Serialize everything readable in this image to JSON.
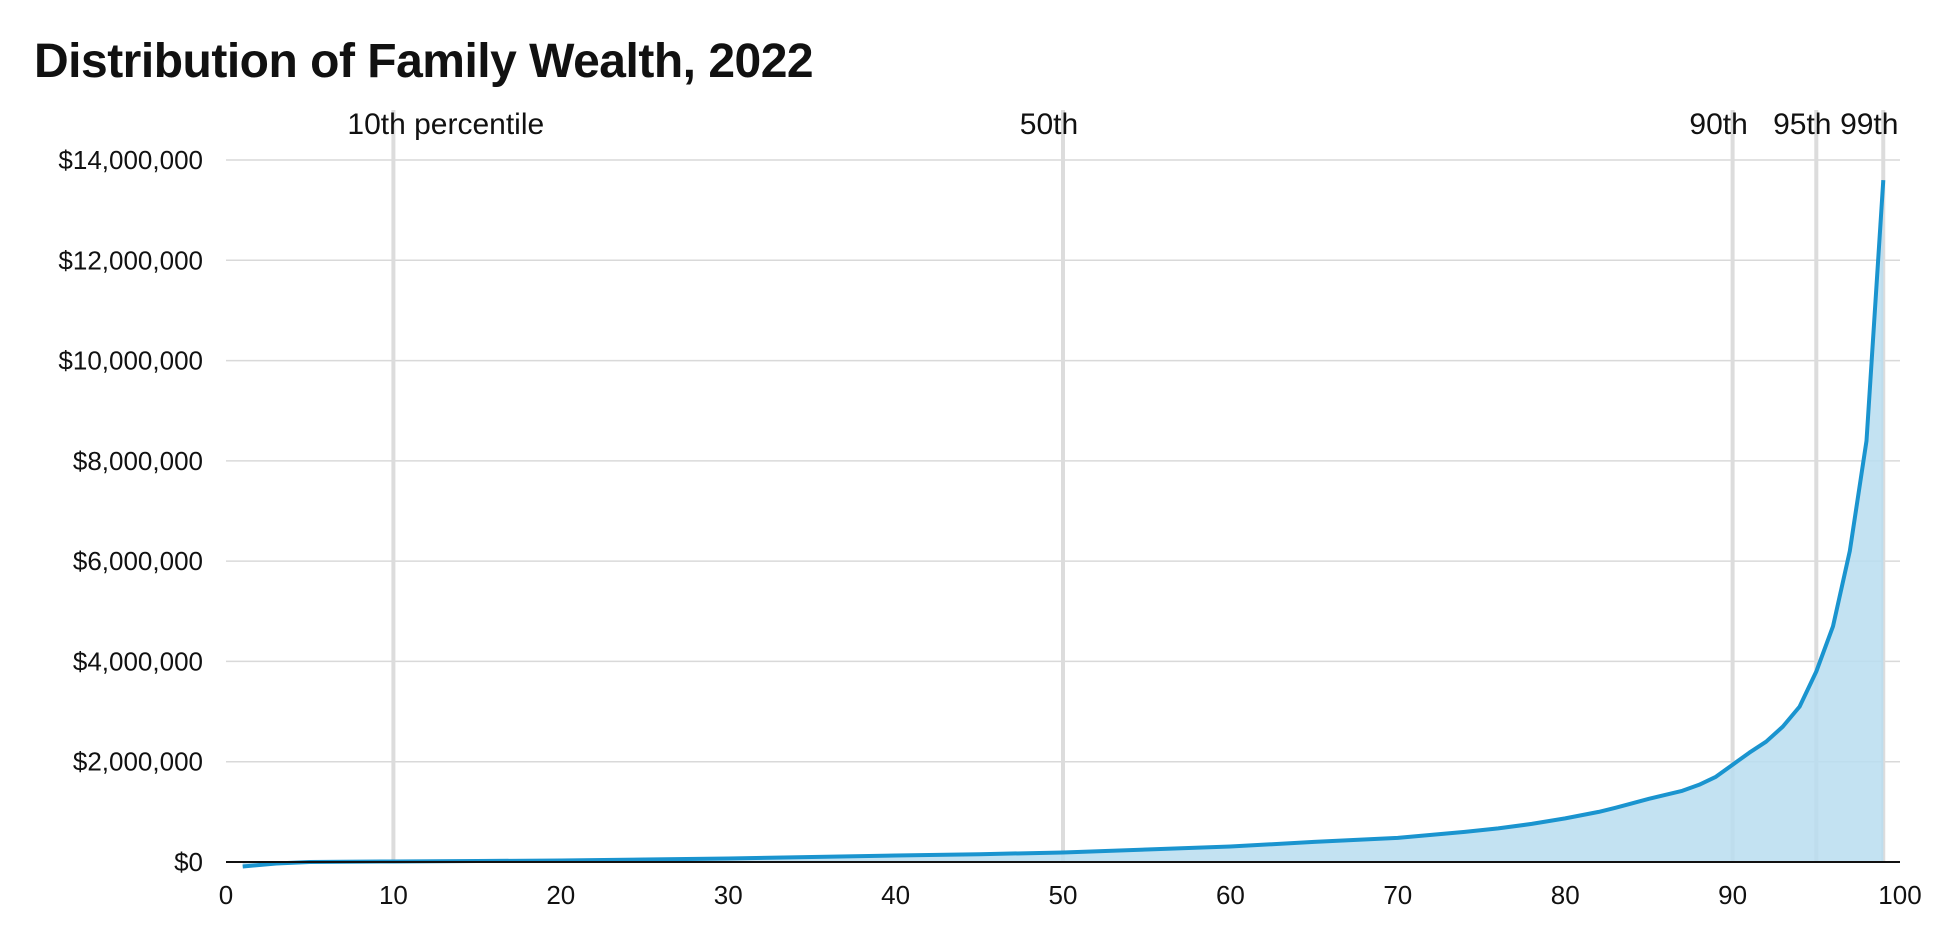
{
  "chart_data": {
    "type": "area",
    "title": "Distribution of Family Wealth, 2022",
    "xlabel": "",
    "ylabel": "",
    "xlim": [
      0,
      100
    ],
    "ylim": [
      0,
      14000000
    ],
    "grid": true,
    "x_ticks": [
      0,
      10,
      20,
      30,
      40,
      50,
      60,
      70,
      80,
      90,
      100
    ],
    "x_tick_labels": [
      "0",
      "10",
      "20",
      "30",
      "40",
      "50",
      "60",
      "70",
      "80",
      "90",
      "100"
    ],
    "y_ticks": [
      0,
      2000000,
      4000000,
      6000000,
      8000000,
      10000000,
      12000000,
      14000000
    ],
    "y_tick_labels": [
      "$0",
      "$2,000,000",
      "$4,000,000",
      "$6,000,000",
      "$8,000,000",
      "$10,000,000",
      "$12,000,000",
      "$14,000,000"
    ],
    "reference_lines": [
      {
        "x": 10,
        "label": "10th percentile"
      },
      {
        "x": 50,
        "label": "50th"
      },
      {
        "x": 90,
        "label": "90th"
      },
      {
        "x": 95,
        "label": "95th"
      },
      {
        "x": 99,
        "label": "99th"
      }
    ],
    "colors": {
      "line": "#1a94cf",
      "fill": "#b9ddf0",
      "grid": "#d9d9d9",
      "refline": "#dcdcdc"
    },
    "x": [
      1,
      3,
      5,
      7,
      10,
      15,
      20,
      25,
      30,
      35,
      40,
      45,
      50,
      55,
      60,
      65,
      70,
      72,
      74,
      76,
      78,
      80,
      82,
      83,
      84,
      85,
      86,
      87,
      88,
      89,
      90,
      91,
      92,
      93,
      94,
      95,
      96,
      97,
      98,
      99
    ],
    "values": [
      -90000,
      -30000,
      0,
      5000,
      10000,
      20000,
      30000,
      50000,
      70000,
      100000,
      130000,
      155000,
      190000,
      250000,
      310000,
      400000,
      480000,
      540000,
      600000,
      670000,
      760000,
      870000,
      1000000,
      1080000,
      1170000,
      1260000,
      1340000,
      1420000,
      1540000,
      1700000,
      1940000,
      2180000,
      2400000,
      2700000,
      3100000,
      3800000,
      4700000,
      6200000,
      8400000,
      13600000
    ]
  }
}
